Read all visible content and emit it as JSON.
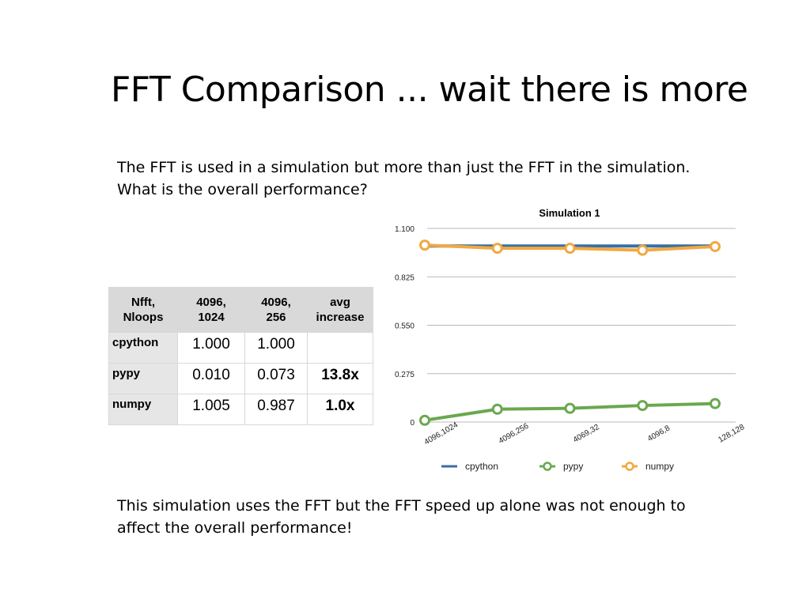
{
  "slide": {
    "title": "FFT Comparison ... wait there is more",
    "intro_line1": "The FFT is used in a simulation but more than just the FFT in the simulation.",
    "intro_line2": "What is the overall performance?",
    "conclusion_line1": "This simulation uses the FFT but the FFT speed up alone was not enough to",
    "conclusion_line2": "affect the overall performance!"
  },
  "table": {
    "headers": [
      [
        "Nfft,",
        "Nloops"
      ],
      [
        "4096,",
        "1024"
      ],
      [
        "4096,",
        "256"
      ],
      [
        "avg",
        "increase"
      ]
    ],
    "rows": [
      {
        "label": "cpython",
        "cells": [
          "1.000",
          "1.000",
          ""
        ]
      },
      {
        "label": "pypy",
        "cells": [
          "0.010",
          "0.073",
          "13.8x"
        ]
      },
      {
        "label": "numpy",
        "cells": [
          "1.005",
          "0.987",
          "1.0x"
        ]
      }
    ]
  },
  "chart_data": {
    "type": "line",
    "title": "Simulation 1",
    "xlabel": "",
    "ylabel": "",
    "categories": [
      "4096,1024",
      "4096,256",
      "4069,32",
      "4096,8",
      "128,128"
    ],
    "ylim": [
      0,
      1.1
    ],
    "yticks": [
      "0",
      "0.275",
      "0.550",
      "0.825",
      "1.100"
    ],
    "grid": true,
    "legend_position": "bottom",
    "series": [
      {
        "name": "cpython",
        "values": [
          1.0,
          1.0,
          1.0,
          1.0,
          1.0
        ],
        "color": "#3a6ea5",
        "markers": false
      },
      {
        "name": "pypy",
        "values": [
          0.01,
          0.073,
          0.078,
          0.094,
          0.105
        ],
        "color": "#6aa84f",
        "markers": true
      },
      {
        "name": "numpy",
        "values": [
          1.005,
          0.987,
          0.987,
          0.976,
          0.997
        ],
        "color": "#f0a941",
        "markers": true
      }
    ]
  }
}
